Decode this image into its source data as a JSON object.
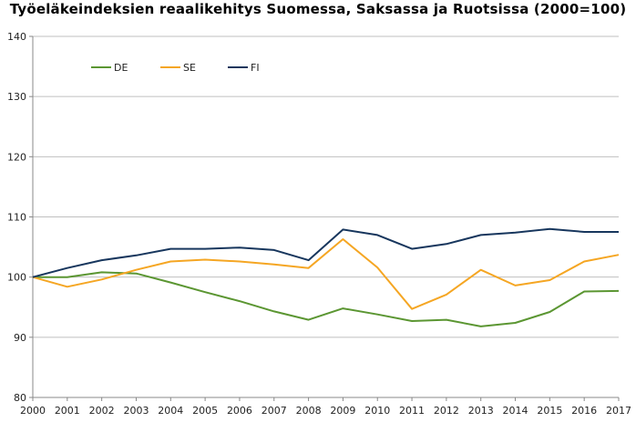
{
  "chart_data": {
    "type": "line",
    "title": "Työeläkeindeksien reaalikehitys Suomessa, Saksassa ja Ruotsissa (2000=100)",
    "xlabel": "",
    "ylabel": "",
    "x": [
      "2000",
      "2001",
      "2002",
      "2003",
      "2004",
      "2005",
      "2006",
      "2007",
      "2008",
      "2009",
      "2010",
      "2011",
      "2012",
      "2013",
      "2014",
      "2015",
      "2016",
      "2017"
    ],
    "ylim": [
      80,
      140
    ],
    "yticks": [
      80,
      90,
      100,
      110,
      120,
      130,
      140
    ],
    "grid": "horizontal",
    "legend_position": "top-left",
    "series": [
      {
        "name": "DE",
        "color": "#5b9632",
        "values": [
          100,
          100,
          100.8,
          100.6,
          99.1,
          97.5,
          96,
          94.3,
          92.9,
          94.8,
          93.8,
          92.7,
          92.9,
          91.8,
          92.4,
          94.2,
          97.6,
          97.7
        ]
      },
      {
        "name": "SE",
        "color": "#f5a623",
        "values": [
          100,
          98.4,
          99.6,
          101.2,
          102.6,
          102.9,
          102.6,
          102.1,
          101.5,
          106.3,
          101.6,
          94.7,
          97.1,
          101.2,
          98.6,
          99.5,
          102.6,
          103.7
        ]
      },
      {
        "name": "FI",
        "color": "#17365d",
        "values": [
          100,
          101.5,
          102.8,
          103.6,
          104.7,
          104.7,
          104.9,
          104.5,
          102.8,
          107.9,
          107,
          104.7,
          105.5,
          107,
          107.4,
          108,
          107.5,
          107.5
        ]
      }
    ]
  }
}
